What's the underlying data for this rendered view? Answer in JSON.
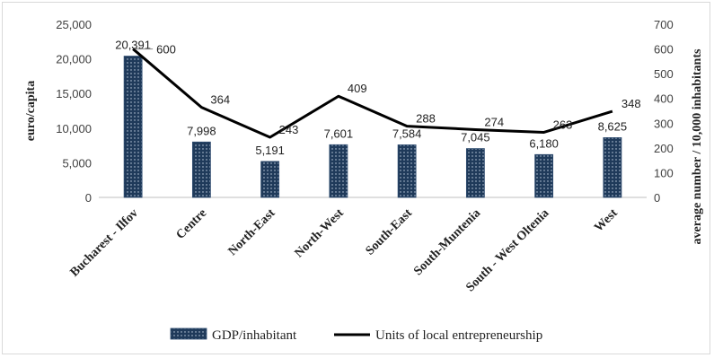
{
  "chart_data": {
    "type": "bar",
    "title": "",
    "categories": [
      "Bucharest - Ilfov",
      "Centre",
      "North-East",
      "North-West",
      "South-East",
      "South-Muntenia",
      "South - West Oltenia",
      "West"
    ],
    "series": [
      {
        "name": "GDP/inhabitant",
        "type": "bar",
        "axis": "left",
        "color": "#1f3a5a",
        "values": [
          20391,
          7998,
          5191,
          7601,
          7584,
          7045,
          6180,
          8625
        ],
        "labels": [
          "20,391",
          "7,998",
          "5,191",
          "7,601",
          "7,584",
          "7,045",
          "6,180",
          "8,625"
        ]
      },
      {
        "name": "Units of local entrepreneurship",
        "type": "line",
        "axis": "right",
        "color": "#000000",
        "values": [
          600,
          364,
          243,
          409,
          288,
          274,
          263,
          348
        ],
        "labels": [
          "600",
          "364",
          "243",
          "409",
          "288",
          "274",
          "263",
          "348"
        ]
      }
    ],
    "ylabel": "euro/capita",
    "y2label": "average number / 10,000 inhabitants",
    "ylim": [
      0,
      25000
    ],
    "y2lim": [
      0,
      700
    ],
    "yticks": [
      "0",
      "5,000",
      "10,000",
      "15,000",
      "20,000",
      "25,000"
    ],
    "y2ticks": [
      "0",
      "100",
      "200",
      "300",
      "400",
      "500",
      "600",
      "700"
    ],
    "grid": false,
    "legend_position": "bottom"
  }
}
